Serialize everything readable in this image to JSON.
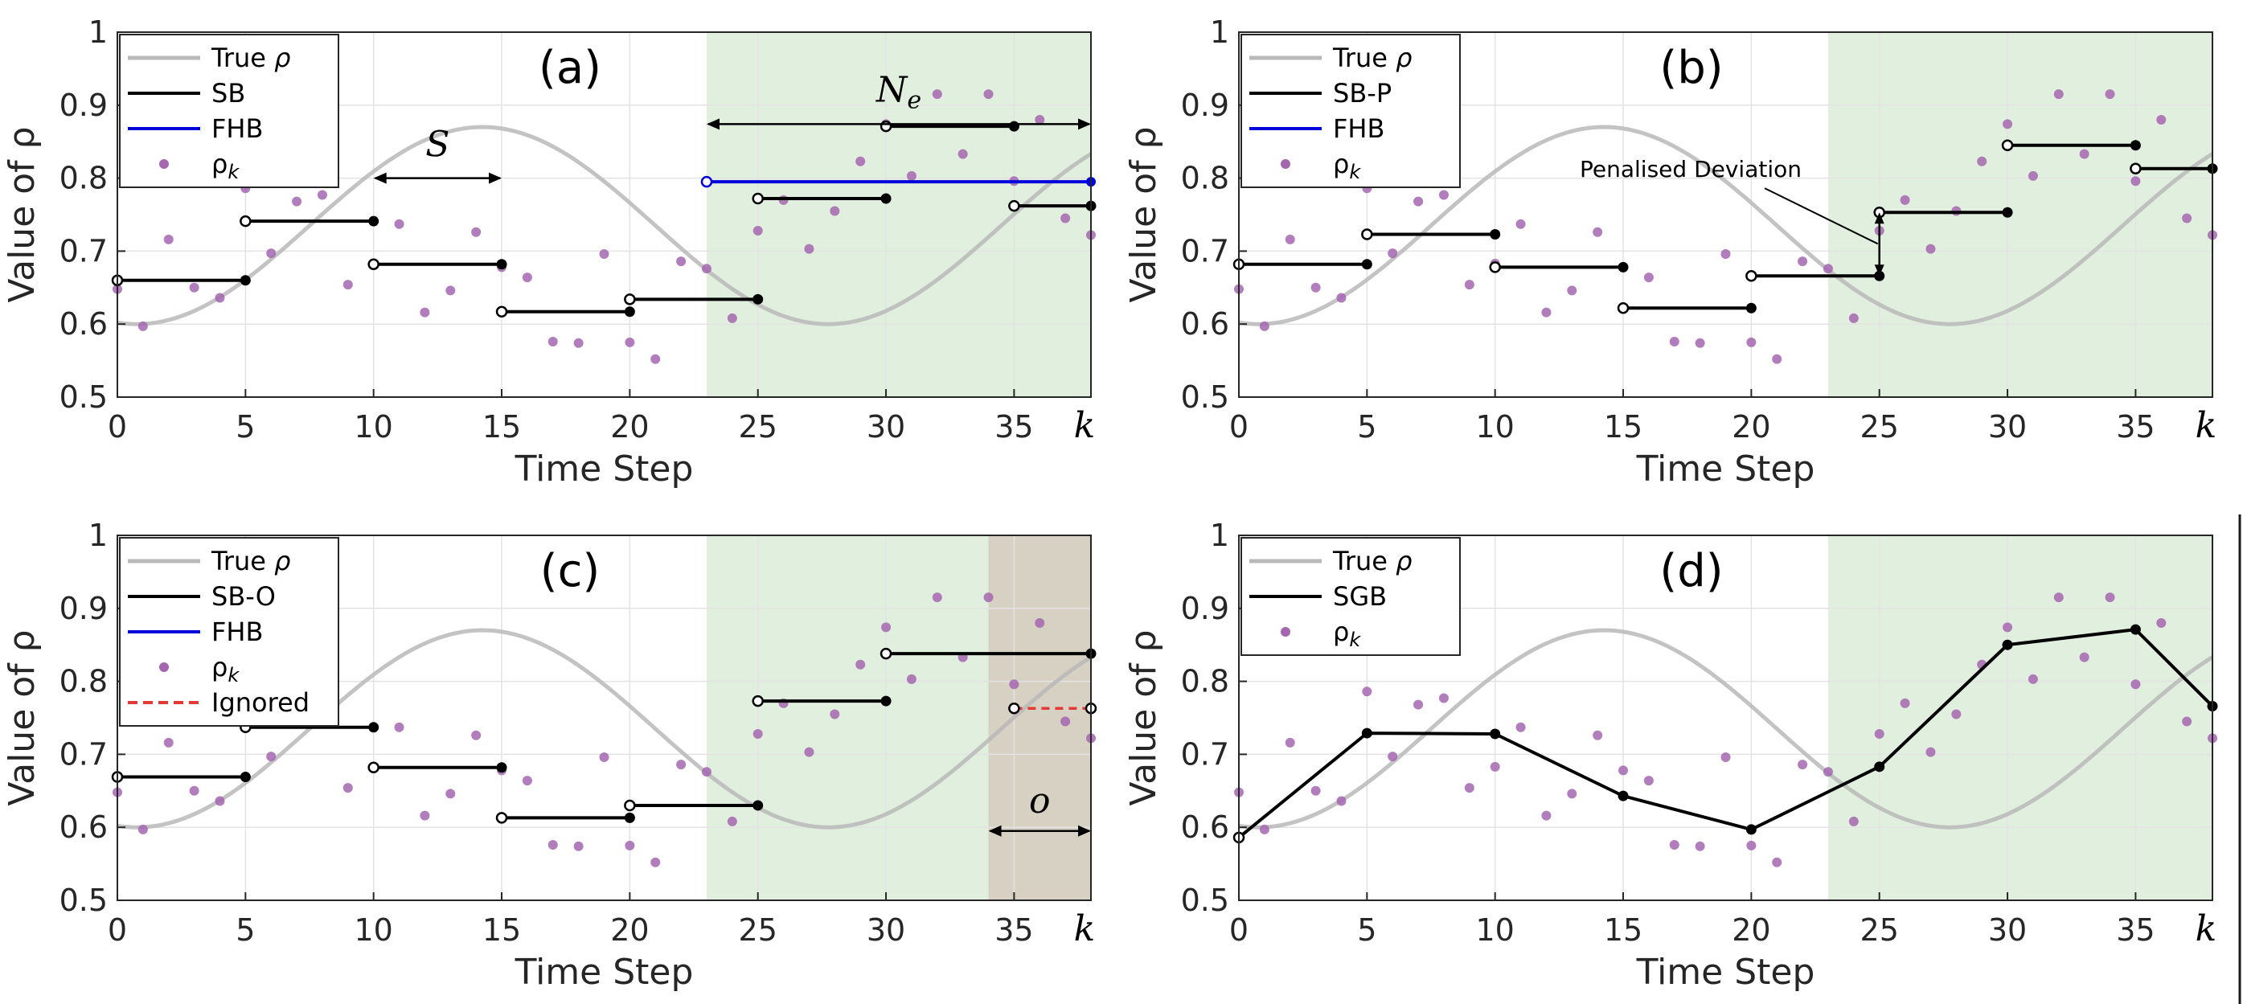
{
  "figure": {
    "xlabel": "Time Step",
    "ylabel": "Value of ρ",
    "rho_symbol": "ρ"
  },
  "colors": {
    "true_curve": "#b9b9b9",
    "step": "#000000",
    "fhb": "#0000dd",
    "samples": "#a566b0",
    "ignored": "#e53935",
    "horizon_shade": "#e1f0de",
    "overlap_shade": "#d7d1c3",
    "grid": "#e3e3e3"
  },
  "chart_data": [
    {
      "id": "a",
      "type": "line",
      "title": "(a)",
      "xlabel": "Time Step",
      "ylabel": "Value of ρ",
      "xlim": [
        0,
        38
      ],
      "ylim": [
        0.5,
        1.0
      ],
      "xticks": [
        "0",
        "5",
        "10",
        "15",
        "20",
        "25",
        "30",
        "35",
        "k"
      ],
      "yticks": [
        "0.5",
        "0.6",
        "0.7",
        "0.8",
        "0.9",
        "1"
      ],
      "grid": true,
      "legend": [
        {
          "label": "True ",
          "sym": "ρ",
          "style": "curve"
        },
        {
          "label": "SB",
          "style": "step"
        },
        {
          "label": "FHB",
          "style": "fhb"
        },
        {
          "label": "ρ",
          "sub": "k",
          "style": "dot"
        }
      ],
      "shade_horizon": [
        23,
        38
      ],
      "steps": [
        [
          0,
          5,
          0.66
        ],
        [
          5,
          10,
          0.741
        ],
        [
          10,
          15,
          0.682
        ],
        [
          15,
          20,
          0.617
        ],
        [
          20,
          25,
          0.634
        ],
        [
          25,
          30,
          0.772
        ],
        [
          30,
          35,
          0.871
        ],
        [
          35,
          38,
          0.762
        ]
      ],
      "fhb": [
        23,
        38,
        0.795
      ],
      "annotations": [
        {
          "text": "S",
          "x1": 10,
          "x2": 15,
          "y": 0.8,
          "label_y": 0.83
        },
        {
          "text": "N",
          "sub": "e",
          "x1": 23,
          "x2": 38,
          "y": 0.874,
          "label_y": 0.905
        }
      ]
    },
    {
      "id": "b",
      "type": "line",
      "title": "(b)",
      "xlabel": "Time Step",
      "ylabel": "Value of ρ",
      "xlim": [
        0,
        38
      ],
      "ylim": [
        0.5,
        1.0
      ],
      "xticks": [
        "0",
        "5",
        "10",
        "15",
        "20",
        "25",
        "30",
        "35",
        "k"
      ],
      "yticks": [
        "0.5",
        "0.6",
        "0.7",
        "0.8",
        "0.9",
        "1"
      ],
      "grid": true,
      "legend": [
        {
          "label": "True ",
          "sym": "ρ",
          "style": "curve"
        },
        {
          "label": "SB-P",
          "style": "step"
        },
        {
          "label": "FHB",
          "style": "fhb"
        },
        {
          "label": "ρ",
          "sub": "k",
          "style": "dot"
        }
      ],
      "shade_horizon": [
        23,
        38
      ],
      "steps": [
        [
          0,
          5,
          0.682
        ],
        [
          5,
          10,
          0.723
        ],
        [
          10,
          15,
          0.678
        ],
        [
          15,
          20,
          0.622
        ],
        [
          20,
          25,
          0.666
        ],
        [
          25,
          30,
          0.753
        ],
        [
          30,
          35,
          0.845
        ],
        [
          35,
          38,
          0.813
        ]
      ],
      "callout": {
        "text": "Penalised Deviation",
        "x": 25,
        "y1": 0.666,
        "y2": 0.753
      }
    },
    {
      "id": "c",
      "type": "line",
      "title": "(c)",
      "xlabel": "Time Step",
      "ylabel": "Value of ρ",
      "xlim": [
        0,
        38
      ],
      "ylim": [
        0.5,
        1.0
      ],
      "xticks": [
        "0",
        "5",
        "10",
        "15",
        "20",
        "25",
        "30",
        "35",
        "k"
      ],
      "yticks": [
        "0.5",
        "0.6",
        "0.7",
        "0.8",
        "0.9",
        "1"
      ],
      "grid": true,
      "legend": [
        {
          "label": "True ",
          "sym": "ρ",
          "style": "curve"
        },
        {
          "label": "SB-O",
          "style": "step"
        },
        {
          "label": "FHB",
          "style": "fhb"
        },
        {
          "label": "ρ",
          "sub": "k",
          "style": "dot"
        },
        {
          "label": "Ignored",
          "style": "dashed"
        }
      ],
      "shade_horizon": [
        23,
        38
      ],
      "shade_overlap": [
        34,
        38
      ],
      "steps": [
        [
          0,
          5,
          0.669
        ],
        [
          5,
          10,
          0.737
        ],
        [
          10,
          15,
          0.682
        ],
        [
          15,
          20,
          0.613
        ],
        [
          20,
          25,
          0.63
        ],
        [
          25,
          30,
          0.773
        ],
        [
          30,
          38,
          0.838
        ]
      ],
      "ignored": [
        35,
        38,
        0.763
      ],
      "annotations": [
        {
          "text": "o",
          "x1": 34,
          "x2": 38,
          "y": 0.595,
          "label_y": 0.62
        }
      ]
    },
    {
      "id": "d",
      "type": "line",
      "title": "(d)",
      "xlabel": "Time Step",
      "ylabel": "Value of ρ",
      "xlim": [
        0,
        38
      ],
      "ylim": [
        0.5,
        1.0
      ],
      "xticks": [
        "0",
        "5",
        "10",
        "15",
        "20",
        "25",
        "30",
        "35",
        "k"
      ],
      "yticks": [
        "0.5",
        "0.6",
        "0.7",
        "0.8",
        "0.9",
        "1"
      ],
      "grid": true,
      "legend": [
        {
          "label": "True ",
          "sym": "ρ",
          "style": "curve"
        },
        {
          "label": "SGB",
          "style": "step"
        },
        {
          "label": "ρ",
          "sub": "k",
          "style": "dot"
        }
      ],
      "shade_horizon": [
        23,
        38
      ],
      "polyline": [
        [
          0,
          0.586
        ],
        [
          5,
          0.729
        ],
        [
          10,
          0.728
        ],
        [
          15,
          0.643
        ],
        [
          20,
          0.597
        ],
        [
          25,
          0.683
        ],
        [
          30,
          0.85
        ],
        [
          35,
          0.871
        ],
        [
          38,
          0.766
        ]
      ]
    }
  ],
  "true_rho": {
    "mean": 0.735,
    "amplitude": 0.135,
    "period": 27,
    "phase_step": 0.75,
    "k_end": 38
  },
  "samples_rho_k": [
    [
      0,
      0.648
    ],
    [
      1,
      0.597
    ],
    [
      2,
      0.716
    ],
    [
      3,
      0.65
    ],
    [
      4,
      0.636
    ],
    [
      5,
      0.786
    ],
    [
      6,
      0.697
    ],
    [
      7,
      0.768
    ],
    [
      8,
      0.777
    ],
    [
      9,
      0.654
    ],
    [
      10,
      0.683
    ],
    [
      11,
      0.737
    ],
    [
      12,
      0.616
    ],
    [
      13,
      0.646
    ],
    [
      14,
      0.726
    ],
    [
      15,
      0.678
    ],
    [
      16,
      0.664
    ],
    [
      17,
      0.576
    ],
    [
      18,
      0.574
    ],
    [
      19,
      0.696
    ],
    [
      20,
      0.575
    ],
    [
      21,
      0.552
    ],
    [
      22,
      0.686
    ],
    [
      23,
      0.676
    ],
    [
      24,
      0.608
    ],
    [
      25,
      0.728
    ],
    [
      26,
      0.77
    ],
    [
      27,
      0.703
    ],
    [
      28,
      0.755
    ],
    [
      29,
      0.823
    ],
    [
      30,
      0.874
    ],
    [
      31,
      0.803
    ],
    [
      32,
      0.915
    ],
    [
      33,
      0.833
    ],
    [
      34,
      0.915
    ],
    [
      35,
      0.796
    ],
    [
      36,
      0.88
    ],
    [
      37,
      0.745
    ],
    [
      38,
      0.722
    ]
  ]
}
